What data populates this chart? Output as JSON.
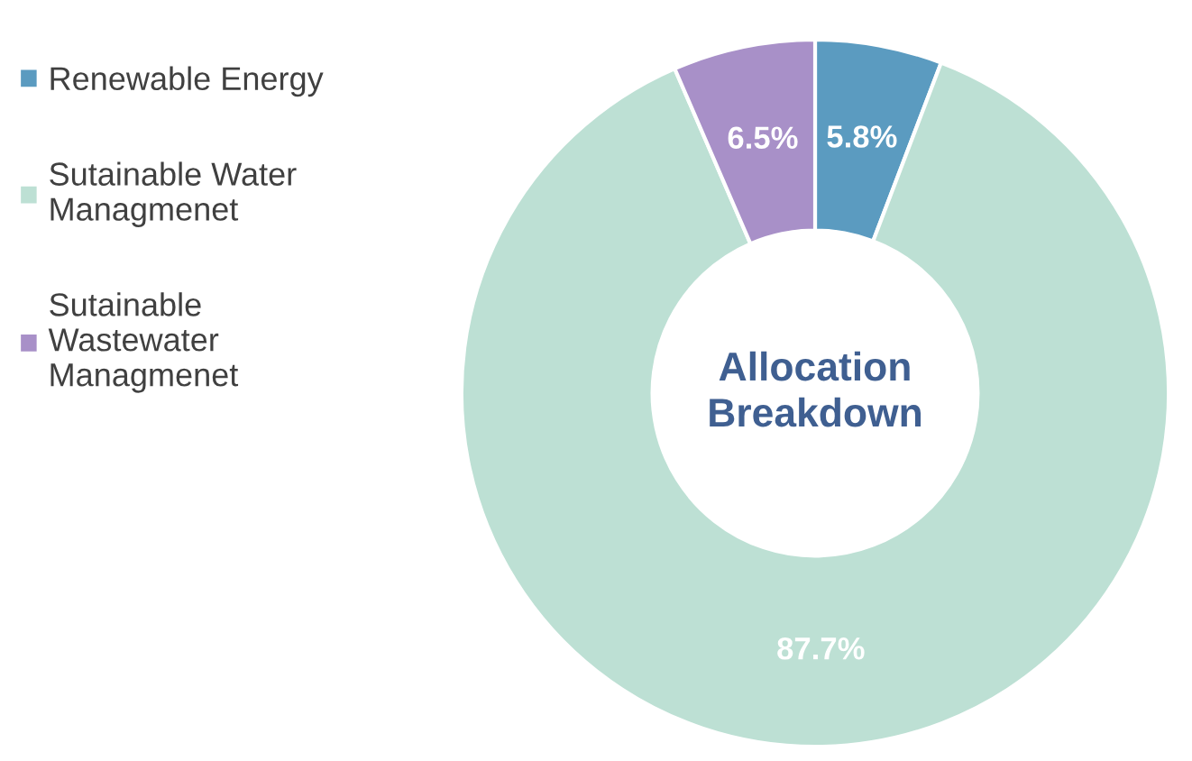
{
  "chart_data": {
    "type": "donut",
    "title": "Allocation\nBreakdown",
    "categories": [
      "Renewable Energy",
      "Sutainable Water\nManagmenet",
      "Sutainable\nWastewater\nManagmenet"
    ],
    "values": [
      5.8,
      87.7,
      6.5
    ],
    "colors": [
      "#5b9bc0",
      "#bde0d4",
      "#a890c8"
    ],
    "value_labels": [
      "5.8%",
      "87.7%",
      "6.5%"
    ],
    "legend": "left"
  }
}
